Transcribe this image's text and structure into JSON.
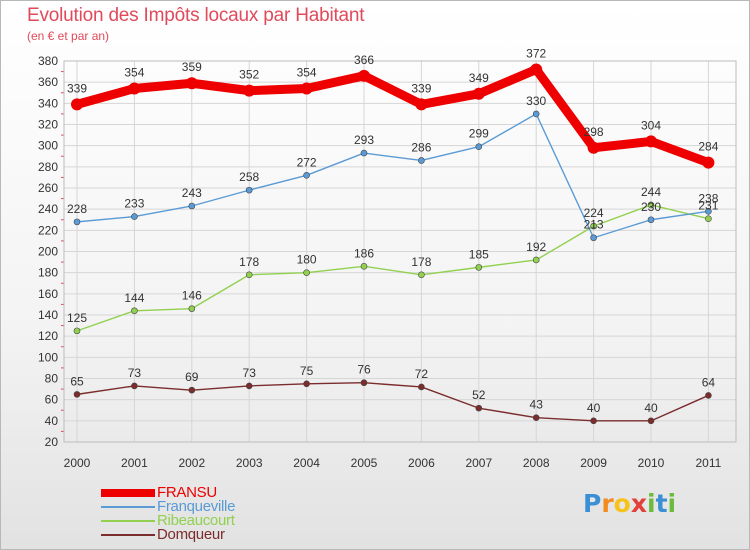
{
  "header": {
    "title": "Evolution des Impôts locaux par Habitant",
    "subtitle": "(en € et par an)"
  },
  "brand": {
    "letters": [
      "P",
      "r",
      "o",
      "x",
      "i",
      "t",
      "i"
    ],
    "colors": [
      "#3b8fd4",
      "#f28c1e",
      "#f6c21b",
      "#e2403a",
      "#6dbb3e",
      "#3b8fd4",
      "#6dbb3e"
    ]
  },
  "chart_data": {
    "type": "line",
    "title": "Evolution des Impôts locaux par Habitant",
    "subtitle": "(en € et par an)",
    "xlabel": "",
    "ylabel": "",
    "x": [
      "2000",
      "2001",
      "2002",
      "2003",
      "2004",
      "2005",
      "2006",
      "2007",
      "2008",
      "2009",
      "2010",
      "2011"
    ],
    "ylim": [
      20,
      380
    ],
    "yticks": [
      20,
      40,
      60,
      80,
      100,
      120,
      140,
      160,
      180,
      200,
      220,
      240,
      260,
      280,
      300,
      320,
      340,
      360,
      380
    ],
    "grid": true,
    "legend_position": "bottom-left",
    "series": [
      {
        "name": "FRANSU",
        "color": "#ee0000",
        "values": [
          339,
          354,
          359,
          352,
          354,
          366,
          339,
          349,
          372,
          298,
          304,
          284
        ]
      },
      {
        "name": "Franqueville",
        "color": "#5b9bd5",
        "values": [
          228,
          233,
          243,
          258,
          272,
          293,
          286,
          299,
          330,
          213,
          230,
          238
        ]
      },
      {
        "name": "Ribeaucourt",
        "color": "#92d050",
        "values": [
          125,
          144,
          146,
          178,
          180,
          186,
          178,
          185,
          192,
          224,
          244,
          231
        ]
      },
      {
        "name": "Domqueur",
        "color": "#7b2c2c",
        "values": [
          65,
          73,
          69,
          73,
          75,
          76,
          72,
          52,
          43,
          40,
          40,
          64
        ]
      }
    ]
  }
}
